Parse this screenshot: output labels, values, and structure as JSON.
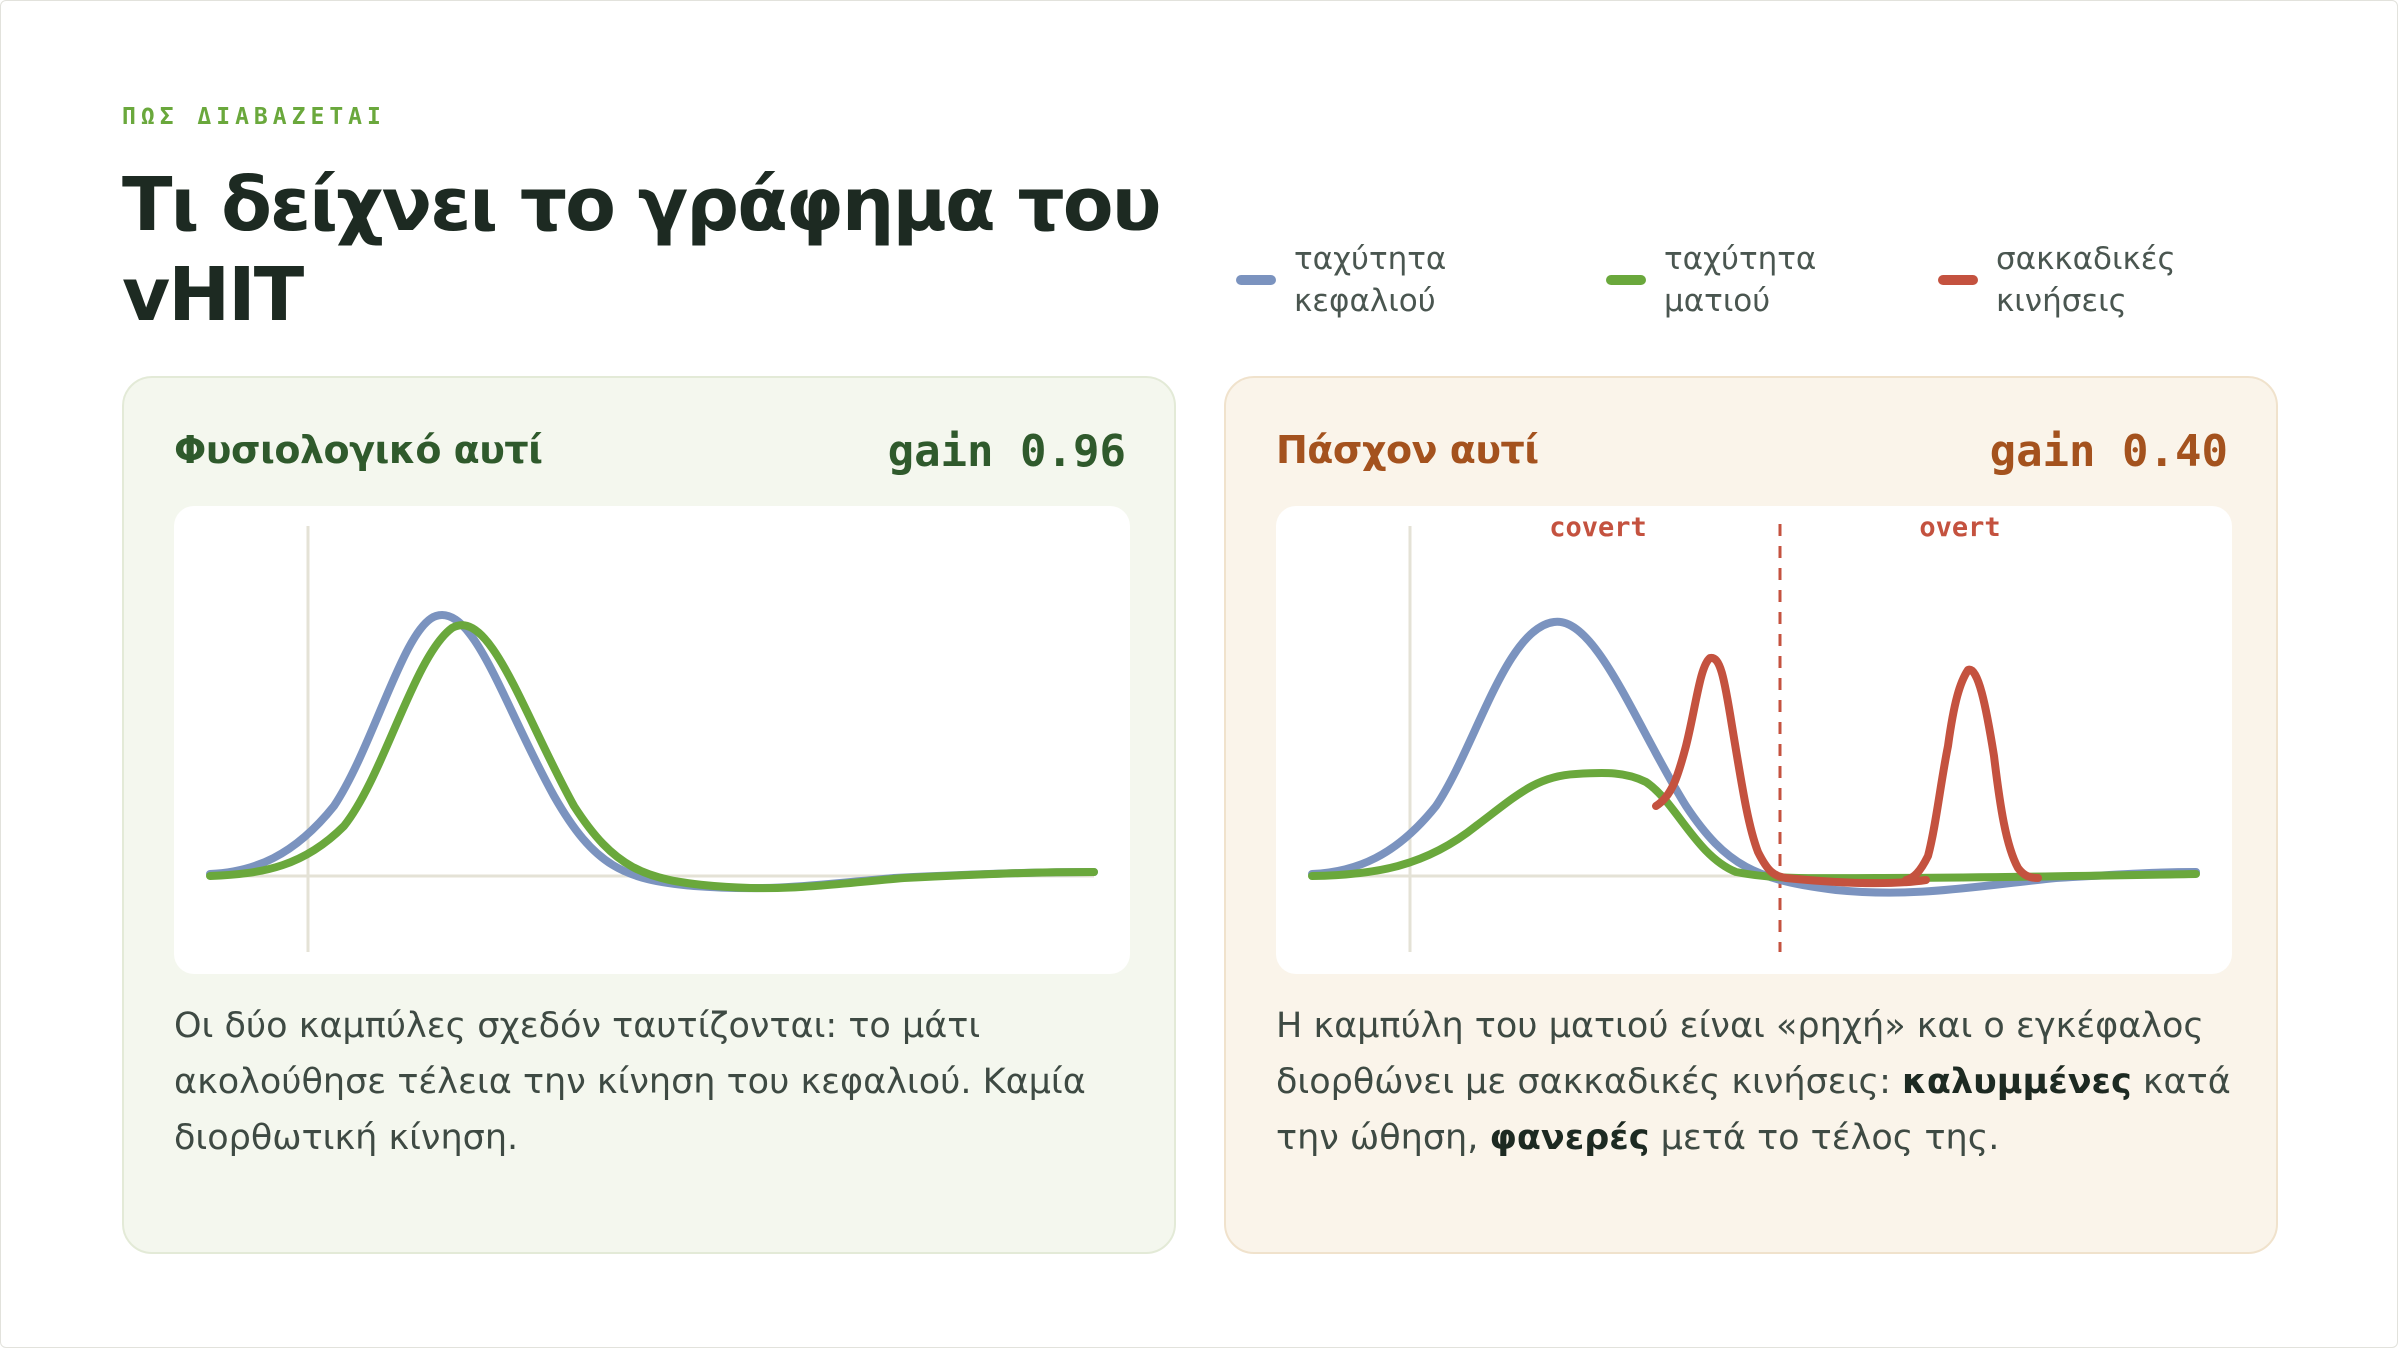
{
  "header": {
    "eyebrow": "ΠΩΣ ΔΙΑΒΑΖΕΤΑΙ",
    "title": "Τι δείχνει το γράφημα του vHIT"
  },
  "legend": [
    {
      "label": "ταχύτητα κεφαλιού",
      "color": "#7b93bf"
    },
    {
      "label": "ταχύτητα ματιού",
      "color": "#6aa83c"
    },
    {
      "label": "σακκαδικές κινήσεις",
      "color": "#c4523f"
    }
  ],
  "cards": {
    "normal": {
      "title": "Φυσιολογικό αυτί",
      "gain": "gain 0.96",
      "description": "Οι δύο καμπύλες σχεδόν ταυτίζονται: το μάτι ακολούθησε τέλεια την κίνηση του κεφαλιού. Καμία διορθωτική κίνηση."
    },
    "pathological": {
      "title": "Πάσχον αυτί",
      "gain": "gain 0.40",
      "annotation_covert": "covert",
      "annotation_overt": "overt",
      "description_before": "Η καμπύλη του ματιού είναι «ρηχή» και ο εγκέφαλος διορθώνει με σακκαδικές κινήσεις: ",
      "description_bold1": "καλυμμένες",
      "description_middle": " κατά την ώθηση, ",
      "description_bold2": "φανερές",
      "description_after": " μετά το τέλος της."
    }
  },
  "colors": {
    "head": "#7b93bf",
    "eye": "#6aa83c",
    "saccade": "#c4523f",
    "axis": "#e4e2d6"
  }
}
